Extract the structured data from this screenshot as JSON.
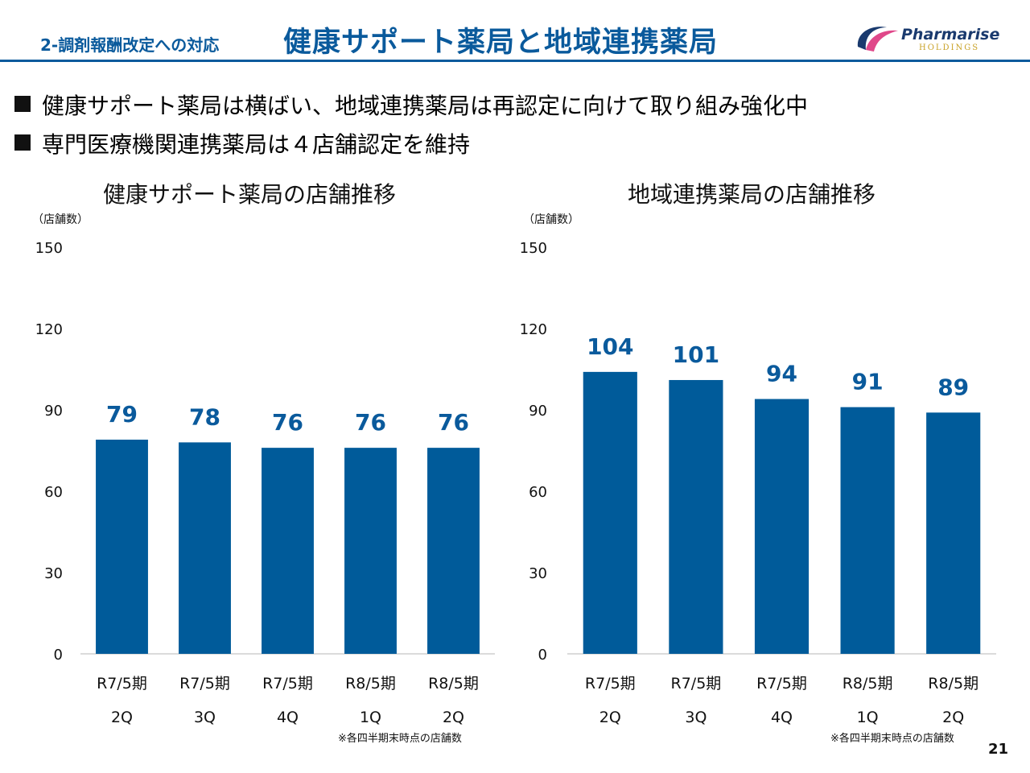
{
  "header": {
    "section": "2-調剤報酬改定への対応",
    "title": "健康サポート薬局と地域連携薬局",
    "logo_name": "Pharmarise",
    "logo_sub": "HOLDINGS"
  },
  "bullets": [
    "健康サポート薬局は横ばい、地域連携薬局は再認定に向けて取り組み強化中",
    "専門医療機関連携薬局は４店舗認定を維持"
  ],
  "colors": {
    "brand": "#0a5a9c",
    "bar": "#005b9a"
  },
  "chart_data": [
    {
      "type": "bar",
      "title": "健康サポート薬局の店舗推移",
      "ylabel": "（店舗数）",
      "ylim": [
        0,
        150
      ],
      "yticks": [
        0,
        30,
        60,
        90,
        120,
        150
      ],
      "categories": [
        {
          "line1": "R7/5期",
          "line2": "2Q"
        },
        {
          "line1": "R7/5期",
          "line2": "3Q"
        },
        {
          "line1": "R7/5期",
          "line2": "4Q"
        },
        {
          "line1": "R8/5期",
          "line2": "1Q"
        },
        {
          "line1": "R8/5期",
          "line2": "2Q"
        }
      ],
      "values": [
        79,
        78,
        76,
        76,
        76
      ],
      "note": "※各四半期末時点の店舗数"
    },
    {
      "type": "bar",
      "title": "地域連携薬局の店舗推移",
      "ylabel": "（店舗数）",
      "ylim": [
        0,
        150
      ],
      "yticks": [
        0,
        30,
        60,
        90,
        120,
        150
      ],
      "categories": [
        {
          "line1": "R7/5期",
          "line2": "2Q"
        },
        {
          "line1": "R7/5期",
          "line2": "3Q"
        },
        {
          "line1": "R7/5期",
          "line2": "4Q"
        },
        {
          "line1": "R8/5期",
          "line2": "1Q"
        },
        {
          "line1": "R8/5期",
          "line2": "2Q"
        }
      ],
      "values": [
        104,
        101,
        94,
        91,
        89
      ],
      "note": "※各四半期末時点の店舗数"
    }
  ],
  "page_number": "21"
}
